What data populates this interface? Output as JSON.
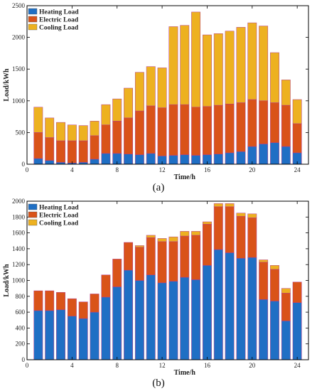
{
  "captions": [
    "(a)",
    "(b)"
  ],
  "colors": {
    "heating": "#1f6fc4",
    "electric": "#d95319",
    "cooling": "#edb120",
    "frame": "#000000"
  },
  "chart_data": [
    {
      "type": "bar",
      "stacked": true,
      "x": [
        1,
        2,
        3,
        4,
        5,
        6,
        7,
        8,
        9,
        10,
        11,
        12,
        13,
        14,
        15,
        16,
        17,
        18,
        19,
        20,
        21,
        22,
        23,
        24
      ],
      "xticks": [
        0,
        4,
        8,
        12,
        16,
        20,
        24
      ],
      "xlim": [
        0,
        25
      ],
      "ylim": [
        0,
        2500
      ],
      "yticks": [
        0,
        500,
        1000,
        1500,
        2000,
        2500
      ],
      "xlabel": "Time/h",
      "ylabel": "Load/kWh",
      "legend_position": "top-left",
      "series": [
        {
          "name": "Heating Load",
          "key": "heating",
          "values": [
            90,
            60,
            30,
            20,
            30,
            80,
            170,
            170,
            160,
            150,
            170,
            130,
            140,
            150,
            140,
            150,
            160,
            180,
            200,
            280,
            320,
            340,
            280,
            180
          ]
        },
        {
          "name": "Electric Load",
          "key": "electric",
          "values": [
            410,
            360,
            340,
            350,
            340,
            370,
            450,
            510,
            570,
            690,
            750,
            760,
            800,
            790,
            760,
            760,
            770,
            770,
            770,
            740,
            680,
            630,
            650,
            460
          ]
        },
        {
          "name": "Cooling Load",
          "key": "cooling",
          "values": [
            400,
            310,
            290,
            250,
            240,
            230,
            320,
            350,
            470,
            610,
            620,
            630,
            1230,
            1250,
            1500,
            1130,
            1130,
            1150,
            1190,
            1210,
            1180,
            790,
            400,
            380
          ]
        }
      ]
    },
    {
      "type": "bar",
      "stacked": true,
      "x": [
        1,
        2,
        3,
        4,
        5,
        6,
        7,
        8,
        9,
        10,
        11,
        12,
        13,
        14,
        15,
        16,
        17,
        18,
        19,
        20,
        21,
        22,
        23,
        24
      ],
      "xticks": [
        0,
        4,
        8,
        12,
        16,
        20,
        24
      ],
      "xlim": [
        0,
        25
      ],
      "ylim": [
        0,
        2000
      ],
      "yticks": [
        0,
        200,
        400,
        600,
        800,
        1000,
        1200,
        1400,
        1600,
        1800,
        2000
      ],
      "xlabel": "Time/h",
      "ylabel": "Load/kWh",
      "legend_position": "top-left",
      "series": [
        {
          "name": "Heating Load",
          "key": "heating",
          "values": [
            620,
            620,
            630,
            550,
            520,
            600,
            790,
            920,
            1130,
            1000,
            1070,
            970,
            990,
            1040,
            1010,
            1190,
            1390,
            1350,
            1280,
            1290,
            760,
            740,
            490,
            720
          ]
        },
        {
          "name": "Electric Load",
          "key": "electric",
          "values": [
            250,
            250,
            220,
            220,
            210,
            230,
            280,
            350,
            350,
            420,
            470,
            520,
            500,
            520,
            560,
            520,
            540,
            580,
            530,
            500,
            470,
            400,
            350,
            260
          ]
        },
        {
          "name": "Cooling Load",
          "key": "cooling",
          "values": [
            0,
            0,
            0,
            0,
            0,
            0,
            0,
            0,
            0,
            20,
            30,
            40,
            60,
            60,
            50,
            30,
            40,
            40,
            40,
            50,
            30,
            50,
            60,
            0
          ]
        }
      ]
    }
  ]
}
